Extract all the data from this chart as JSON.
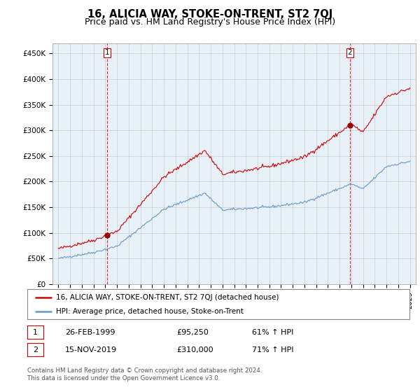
{
  "title": "16, ALICIA WAY, STOKE-ON-TRENT, ST2 7QJ",
  "subtitle": "Price paid vs. HM Land Registry's House Price Index (HPI)",
  "ylabel_ticks": [
    "£0",
    "£50K",
    "£100K",
    "£150K",
    "£200K",
    "£250K",
    "£300K",
    "£350K",
    "£400K",
    "£450K"
  ],
  "ytick_values": [
    0,
    50000,
    100000,
    150000,
    200000,
    250000,
    300000,
    350000,
    400000,
    450000
  ],
  "ylim": [
    0,
    470000
  ],
  "xlim_start": 1994.5,
  "xlim_end": 2025.5,
  "property_color": "#cc0000",
  "hpi_color": "#6699cc",
  "vline_color": "#cc0000",
  "sale1_year": 1999.15,
  "sale1_price": 95250,
  "sale2_year": 2019.88,
  "sale2_price": 310000,
  "legend_property": "16, ALICIA WAY, STOKE-ON-TRENT, ST2 7QJ (detached house)",
  "legend_hpi": "HPI: Average price, detached house, Stoke-on-Trent",
  "table_row1": [
    "1",
    "26-FEB-1999",
    "£95,250",
    "61% ↑ HPI"
  ],
  "table_row2": [
    "2",
    "15-NOV-2019",
    "£310,000",
    "71% ↑ HPI"
  ],
  "footnote": "Contains HM Land Registry data © Crown copyright and database right 2024.\nThis data is licensed under the Open Government Licence v3.0.",
  "background_color": "#ffffff",
  "grid_color": "#cccccc",
  "chart_bg": "#e8f0f8",
  "title_fontsize": 10.5,
  "subtitle_fontsize": 9,
  "tick_fontsize": 7.5
}
